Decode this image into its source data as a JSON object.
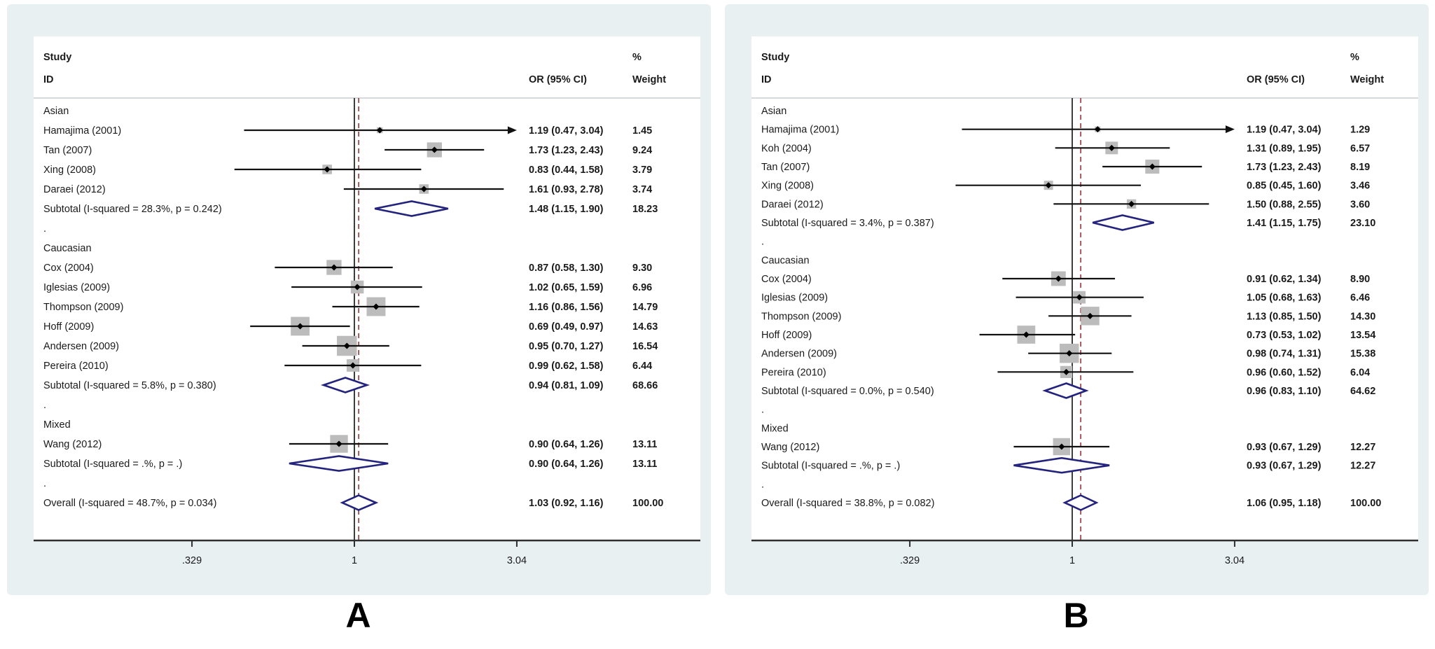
{
  "figure": {
    "panel_a_letter": "A",
    "panel_b_letter": "B"
  },
  "colors": {
    "panel_bg": "#e9f0f2",
    "plot_bg": "#ffffff",
    "text": "#1a1a1a",
    "separator": "#c8cdd1",
    "axis": "#2f2f2f",
    "null_line": "#3d3d3d",
    "ref_dash": "#9e4040",
    "ci_line": "#111111",
    "square": "#bcbcbc",
    "marker": "#000000",
    "diamond": "#23237e"
  },
  "chart_data": [
    {
      "type": "forest",
      "panel_label": "A",
      "col_headers": {
        "study_line1": "Study",
        "study_line2": "ID",
        "or": "OR (95% CI)",
        "weight_line1": "%",
        "weight_line2": "Weight"
      },
      "x_ticks": [
        0.329,
        1,
        3.04
      ],
      "x_tick_labels": [
        ".329",
        "1",
        "3.04"
      ],
      "null_line": 1,
      "overall_line": 1.03,
      "axis_scale": "log",
      "rows": [
        {
          "kind": "group",
          "label": "Asian"
        },
        {
          "kind": "study",
          "label": "Hamajima (2001)",
          "or": 1.19,
          "lo": 0.47,
          "hi": 3.04,
          "display": "1.19 (0.47, 3.04)",
          "weight": 1.45,
          "weight_display": "1.45",
          "arrow": true
        },
        {
          "kind": "study",
          "label": "Tan (2007)",
          "or": 1.73,
          "lo": 1.23,
          "hi": 2.43,
          "display": "1.73 (1.23, 2.43)",
          "weight": 9.24,
          "weight_display": "9.24"
        },
        {
          "kind": "study",
          "label": "Xing (2008)",
          "or": 0.83,
          "lo": 0.44,
          "hi": 1.58,
          "display": "0.83 (0.44, 1.58)",
          "weight": 3.79,
          "weight_display": "3.79"
        },
        {
          "kind": "study",
          "label": "Daraei (2012)",
          "or": 1.61,
          "lo": 0.93,
          "hi": 2.78,
          "display": "1.61 (0.93, 2.78)",
          "weight": 3.74,
          "weight_display": "3.74"
        },
        {
          "kind": "subtotal",
          "label": "Subtotal  (I-squared = 28.3%, p = 0.242)",
          "or": 1.48,
          "lo": 1.15,
          "hi": 1.9,
          "display": "1.48 (1.15, 1.90)",
          "weight_display": "18.23"
        },
        {
          "kind": "spacer",
          "label": "."
        },
        {
          "kind": "group",
          "label": "Caucasian"
        },
        {
          "kind": "study",
          "label": "Cox (2004)",
          "or": 0.87,
          "lo": 0.58,
          "hi": 1.3,
          "display": "0.87 (0.58, 1.30)",
          "weight": 9.3,
          "weight_display": "9.30"
        },
        {
          "kind": "study",
          "label": "Iglesias (2009)",
          "or": 1.02,
          "lo": 0.65,
          "hi": 1.59,
          "display": "1.02 (0.65, 1.59)",
          "weight": 6.96,
          "weight_display": "6.96"
        },
        {
          "kind": "study",
          "label": "Thompson (2009)",
          "or": 1.16,
          "lo": 0.86,
          "hi": 1.56,
          "display": "1.16 (0.86, 1.56)",
          "weight": 14.79,
          "weight_display": "14.79"
        },
        {
          "kind": "study",
          "label": "Hoff (2009)",
          "or": 0.69,
          "lo": 0.49,
          "hi": 0.97,
          "display": "0.69 (0.49, 0.97)",
          "weight": 14.63,
          "weight_display": "14.63"
        },
        {
          "kind": "study",
          "label": "Andersen (2009)",
          "or": 0.95,
          "lo": 0.7,
          "hi": 1.27,
          "display": "0.95 (0.70, 1.27)",
          "weight": 16.54,
          "weight_display": "16.54"
        },
        {
          "kind": "study",
          "label": "Pereira (2010)",
          "or": 0.99,
          "lo": 0.62,
          "hi": 1.58,
          "display": "0.99 (0.62, 1.58)",
          "weight": 6.44,
          "weight_display": "6.44"
        },
        {
          "kind": "subtotal",
          "label": "Subtotal  (I-squared = 5.8%, p = 0.380)",
          "or": 0.94,
          "lo": 0.81,
          "hi": 1.09,
          "display": "0.94 (0.81, 1.09)",
          "weight_display": "68.66"
        },
        {
          "kind": "spacer",
          "label": "."
        },
        {
          "kind": "group",
          "label": "Mixed"
        },
        {
          "kind": "study",
          "label": "Wang (2012)",
          "or": 0.9,
          "lo": 0.64,
          "hi": 1.26,
          "display": "0.90 (0.64, 1.26)",
          "weight": 13.11,
          "weight_display": "13.11"
        },
        {
          "kind": "subtotal",
          "label": "Subtotal  (I-squared = .%, p = .)",
          "or": 0.9,
          "lo": 0.64,
          "hi": 1.26,
          "display": "0.90 (0.64, 1.26)",
          "weight_display": "13.11"
        },
        {
          "kind": "spacer",
          "label": "."
        },
        {
          "kind": "overall",
          "label": "Overall  (I-squared = 48.7%, p = 0.034)",
          "or": 1.03,
          "lo": 0.92,
          "hi": 1.16,
          "display": "1.03 (0.92, 1.16)",
          "weight_display": "100.00"
        }
      ]
    },
    {
      "type": "forest",
      "panel_label": "B",
      "col_headers": {
        "study_line1": "Study",
        "study_line2": "ID",
        "or": "OR (95% CI)",
        "weight_line1": "%",
        "weight_line2": "Weight"
      },
      "x_ticks": [
        0.329,
        1,
        3.04
      ],
      "x_tick_labels": [
        ".329",
        "1",
        "3.04"
      ],
      "null_line": 1,
      "overall_line": 1.06,
      "axis_scale": "log",
      "rows": [
        {
          "kind": "group",
          "label": "Asian"
        },
        {
          "kind": "study",
          "label": "Hamajima (2001)",
          "or": 1.19,
          "lo": 0.47,
          "hi": 3.04,
          "display": "1.19 (0.47, 3.04)",
          "weight": 1.29,
          "weight_display": "1.29",
          "arrow": true
        },
        {
          "kind": "study",
          "label": "Koh (2004)",
          "or": 1.31,
          "lo": 0.89,
          "hi": 1.95,
          "display": "1.31 (0.89, 1.95)",
          "weight": 6.57,
          "weight_display": "6.57"
        },
        {
          "kind": "study",
          "label": "Tan (2007)",
          "or": 1.73,
          "lo": 1.23,
          "hi": 2.43,
          "display": "1.73 (1.23, 2.43)",
          "weight": 8.19,
          "weight_display": "8.19"
        },
        {
          "kind": "study",
          "label": "Xing (2008)",
          "or": 0.85,
          "lo": 0.45,
          "hi": 1.6,
          "display": "0.85 (0.45, 1.60)",
          "weight": 3.46,
          "weight_display": "3.46"
        },
        {
          "kind": "study",
          "label": "Daraei (2012)",
          "or": 1.5,
          "lo": 0.88,
          "hi": 2.55,
          "display": "1.50 (0.88, 2.55)",
          "weight": 3.6,
          "weight_display": "3.60"
        },
        {
          "kind": "subtotal",
          "label": "Subtotal  (I-squared = 3.4%, p = 0.387)",
          "or": 1.41,
          "lo": 1.15,
          "hi": 1.75,
          "display": "1.41 (1.15, 1.75)",
          "weight_display": "23.10"
        },
        {
          "kind": "spacer",
          "label": "."
        },
        {
          "kind": "group",
          "label": "Caucasian"
        },
        {
          "kind": "study",
          "label": "Cox (2004)",
          "or": 0.91,
          "lo": 0.62,
          "hi": 1.34,
          "display": "0.91 (0.62, 1.34)",
          "weight": 8.9,
          "weight_display": "8.90"
        },
        {
          "kind": "study",
          "label": "Iglesias (2009)",
          "or": 1.05,
          "lo": 0.68,
          "hi": 1.63,
          "display": "1.05 (0.68, 1.63)",
          "weight": 6.46,
          "weight_display": "6.46"
        },
        {
          "kind": "study",
          "label": "Thompson (2009)",
          "or": 1.13,
          "lo": 0.85,
          "hi": 1.5,
          "display": "1.13 (0.85, 1.50)",
          "weight": 14.3,
          "weight_display": "14.30"
        },
        {
          "kind": "study",
          "label": "Hoff (2009)",
          "or": 0.73,
          "lo": 0.53,
          "hi": 1.02,
          "display": "0.73 (0.53, 1.02)",
          "weight": 13.54,
          "weight_display": "13.54"
        },
        {
          "kind": "study",
          "label": "Andersen (2009)",
          "or": 0.98,
          "lo": 0.74,
          "hi": 1.31,
          "display": "0.98 (0.74, 1.31)",
          "weight": 15.38,
          "weight_display": "15.38"
        },
        {
          "kind": "study",
          "label": "Pereira (2010)",
          "or": 0.96,
          "lo": 0.6,
          "hi": 1.52,
          "display": "0.96 (0.60, 1.52)",
          "weight": 6.04,
          "weight_display": "6.04"
        },
        {
          "kind": "subtotal",
          "label": "Subtotal  (I-squared = 0.0%, p = 0.540)",
          "or": 0.96,
          "lo": 0.83,
          "hi": 1.1,
          "display": "0.96 (0.83, 1.10)",
          "weight_display": "64.62"
        },
        {
          "kind": "spacer",
          "label": "."
        },
        {
          "kind": "group",
          "label": "Mixed"
        },
        {
          "kind": "study",
          "label": "Wang (2012)",
          "or": 0.93,
          "lo": 0.67,
          "hi": 1.29,
          "display": "0.93 (0.67, 1.29)",
          "weight": 12.27,
          "weight_display": "12.27"
        },
        {
          "kind": "subtotal",
          "label": "Subtotal  (I-squared = .%, p = .)",
          "or": 0.93,
          "lo": 0.67,
          "hi": 1.29,
          "display": "0.93 (0.67, 1.29)",
          "weight_display": "12.27"
        },
        {
          "kind": "spacer",
          "label": "."
        },
        {
          "kind": "overall",
          "label": "Overall  (I-squared = 38.8%, p = 0.082)",
          "or": 1.06,
          "lo": 0.95,
          "hi": 1.18,
          "display": "1.06 (0.95, 1.18)",
          "weight_display": "100.00"
        }
      ]
    }
  ]
}
